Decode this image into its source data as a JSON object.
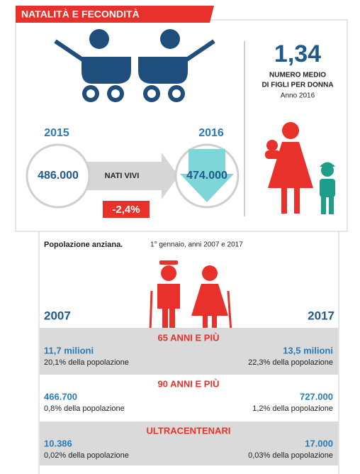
{
  "header": {
    "title": "NATALITÀ E FECONDITÀ"
  },
  "births": {
    "years": [
      "2015",
      "2016"
    ],
    "values": [
      "486.000",
      "474.000"
    ],
    "label": "NATI VIVI",
    "change": "-2,4%"
  },
  "fertility": {
    "value": "1,34",
    "label_lines": [
      "NUMERO MEDIO",
      "DI FIGLI PER DONNA"
    ],
    "year": "Anno 2016"
  },
  "elderly": {
    "title": "Popolazione anziana.",
    "subtitle": "1° gennaio, anni 2007 e 2017",
    "years": [
      "2007",
      "2017"
    ],
    "groups": [
      {
        "name": "65 ANNI E PIÙ",
        "values": [
          "11,7 milioni",
          "13,5 milioni"
        ],
        "shares": [
          "20,1% della popolazione",
          "22,3% della popolazione"
        ]
      },
      {
        "name": "90 ANNI E PIÙ",
        "values": [
          "466.700",
          "727.000"
        ],
        "shares": [
          "0,8% della popolazione",
          "1,2% della popolazione"
        ]
      },
      {
        "name": "ULTRACENTENARI",
        "values": [
          "10.386",
          "17.000"
        ],
        "shares": [
          "0,02% della popolazione",
          "0,03% della popolazione"
        ]
      }
    ]
  }
}
